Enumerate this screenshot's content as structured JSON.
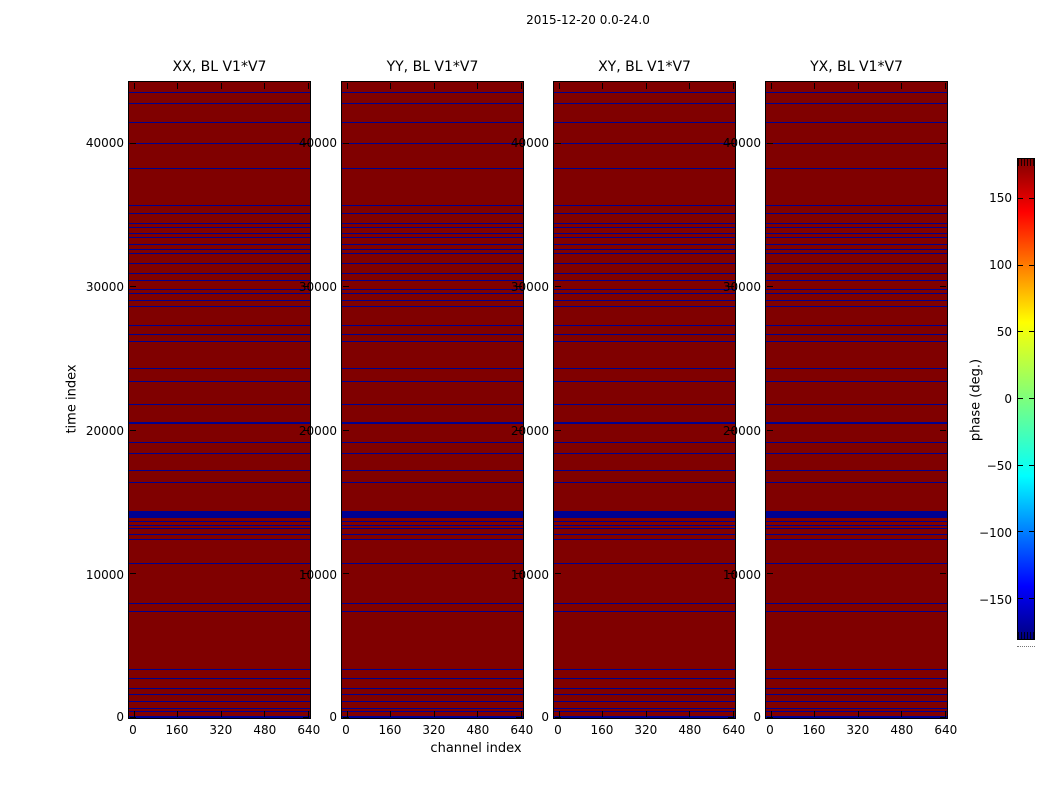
{
  "figure_title": "2015-12-20 0.0-24.0",
  "colors": {
    "heat_background": "#800000",
    "feature_line": "#000090",
    "axis": "#000000",
    "text": "#000000",
    "page_background": "#ffffff"
  },
  "chart_data": {
    "type": "heatmap",
    "title": "2015-12-20 0.0-24.0",
    "xlabel": "channel index",
    "ylabel": "time index",
    "panels": [
      {
        "title": "XX, BL V1*V7"
      },
      {
        "title": "YY, BL V1*V7"
      },
      {
        "title": "XY, BL V1*V7"
      },
      {
        "title": "YX, BL V1*V7"
      }
    ],
    "x_ticks": [
      0,
      160,
      320,
      480,
      640
    ],
    "y_ticks": [
      0,
      10000,
      20000,
      30000,
      40000
    ],
    "xlim": [
      -18,
      648
    ],
    "ylim": [
      0,
      44300
    ],
    "grid": false,
    "value_background_deg": 180,
    "feature_value_deg": -180,
    "feature_rows": [
      {
        "t": 43600,
        "w": 1
      },
      {
        "t": 42800,
        "w": 1
      },
      {
        "t": 41500,
        "w": 1
      },
      {
        "t": 40000,
        "w": 1
      },
      {
        "t": 38300,
        "w": 1
      },
      {
        "t": 35700,
        "w": 1
      },
      {
        "t": 35200,
        "w": 1
      },
      {
        "t": 34500,
        "w": 1
      },
      {
        "t": 34200,
        "w": 1
      },
      {
        "t": 33800,
        "w": 1
      },
      {
        "t": 33500,
        "w": 1
      },
      {
        "t": 33000,
        "w": 1
      },
      {
        "t": 32700,
        "w": 1
      },
      {
        "t": 32400,
        "w": 1
      },
      {
        "t": 31700,
        "w": 1
      },
      {
        "t": 31000,
        "w": 1
      },
      {
        "t": 30500,
        "w": 1
      },
      {
        "t": 29900,
        "w": 1
      },
      {
        "t": 29600,
        "w": 1
      },
      {
        "t": 29100,
        "w": 1
      },
      {
        "t": 28700,
        "w": 1
      },
      {
        "t": 27400,
        "w": 1
      },
      {
        "t": 26800,
        "w": 1
      },
      {
        "t": 26300,
        "w": 1
      },
      {
        "t": 24400,
        "w": 1
      },
      {
        "t": 23500,
        "w": 1
      },
      {
        "t": 21900,
        "w": 1
      },
      {
        "t": 20600,
        "w": 2
      },
      {
        "t": 19300,
        "w": 1
      },
      {
        "t": 18500,
        "w": 1
      },
      {
        "t": 17300,
        "w": 1
      },
      {
        "t": 16500,
        "w": 1
      },
      {
        "t": 14300,
        "w": 7
      },
      {
        "t": 13800,
        "w": 1
      },
      {
        "t": 13500,
        "w": 1
      },
      {
        "t": 13300,
        "w": 1
      },
      {
        "t": 12900,
        "w": 1
      },
      {
        "t": 12500,
        "w": 1
      },
      {
        "t": 10900,
        "w": 1
      },
      {
        "t": 8100,
        "w": 1
      },
      {
        "t": 7500,
        "w": 1
      },
      {
        "t": 3500,
        "w": 1
      },
      {
        "t": 2900,
        "w": 1
      },
      {
        "t": 2200,
        "w": 1
      },
      {
        "t": 1800,
        "w": 1
      },
      {
        "t": 1300,
        "w": 1
      },
      {
        "t": 800,
        "w": 1
      },
      {
        "t": 560,
        "w": 1
      },
      {
        "t": 70,
        "w": 3
      }
    ],
    "colorbar": {
      "label": "phase (deg.)",
      "range": [
        -180,
        180
      ],
      "ticks": [
        150,
        100,
        50,
        0,
        -50,
        -100,
        -150
      ],
      "colormap": "jet",
      "gradient_stops_from_top": [
        {
          "pos": 0,
          "color": "#800000"
        },
        {
          "pos": 11,
          "color": "#ff0000"
        },
        {
          "pos": 34,
          "color": "#ffff00"
        },
        {
          "pos": 50,
          "color": "#7dff7d"
        },
        {
          "pos": 66,
          "color": "#00ffff"
        },
        {
          "pos": 89,
          "color": "#0000ff"
        },
        {
          "pos": 100,
          "color": "#000080"
        }
      ]
    }
  }
}
